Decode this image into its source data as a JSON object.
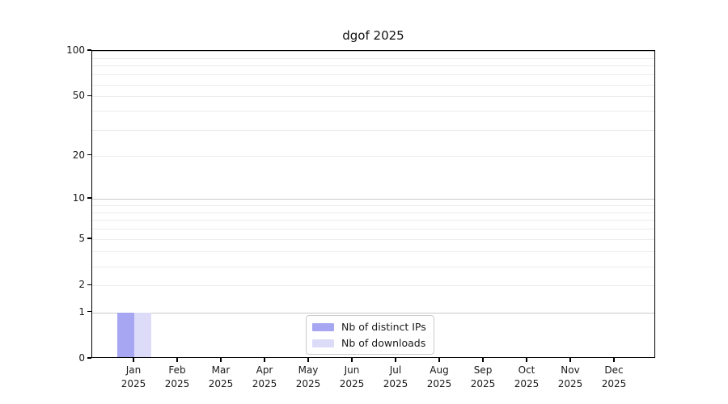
{
  "chart_data": {
    "type": "bar",
    "title": "dgof 2025",
    "categories": [
      "Jan",
      "Feb",
      "Mar",
      "Apr",
      "May",
      "Jun",
      "Jul",
      "Aug",
      "Sep",
      "Oct",
      "Nov",
      "Dec"
    ],
    "category_year": "2025",
    "series": [
      {
        "name": "Nb of distinct IPs",
        "color": "#a6a6f2",
        "values": [
          1,
          0,
          0,
          0,
          0,
          0,
          0,
          0,
          0,
          0,
          0,
          0
        ]
      },
      {
        "name": "Nb of downloads",
        "color": "#dcdcf8",
        "values": [
          1,
          0,
          0,
          0,
          0,
          0,
          0,
          0,
          0,
          0,
          0,
          0
        ]
      }
    ],
    "xlabel": "",
    "ylabel": "",
    "y_axis": {
      "scale": "log10(value+1)",
      "lim": [
        0,
        100
      ],
      "tick_values": [
        0,
        1,
        2,
        5,
        10,
        20,
        50,
        100
      ],
      "major_gridlines": [
        1,
        10,
        100
      ],
      "minor_gridlines": [
        2,
        3,
        4,
        5,
        6,
        7,
        8,
        9,
        20,
        30,
        40,
        50,
        60,
        70,
        80,
        90
      ]
    },
    "grid": true,
    "legend_position": "inside-bottom-center"
  },
  "colors": {
    "series_distinct_ips": "#a6a6f2",
    "series_downloads": "#dcdcf8",
    "grid_major": "#c9c9c9",
    "grid_minor": "#ececec",
    "axis_frame": "#000000",
    "text": "#1a1a1a",
    "legend_border": "#cccccc",
    "background": "#ffffff"
  }
}
